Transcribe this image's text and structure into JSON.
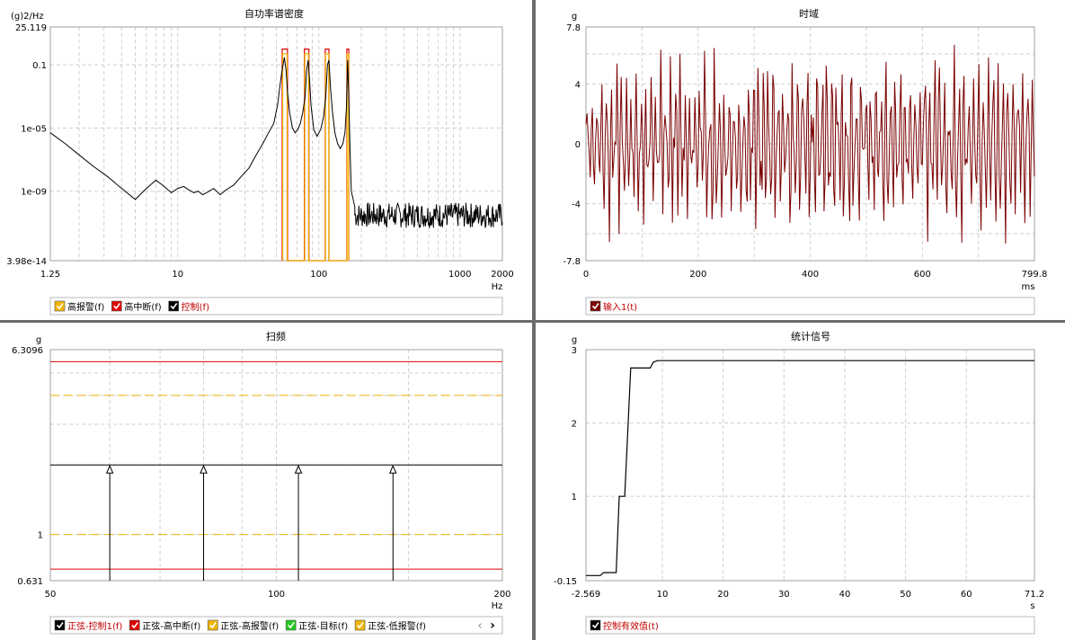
{
  "colors": {
    "control": "#000000",
    "abort": "#e00000",
    "alarm": "#f0b400",
    "target": "#22c922",
    "input": "#7a0000",
    "grid": "#cfcfcf"
  },
  "panels": {
    "psd": {
      "title": "自功率谱密度",
      "unit": "(g)2/Hz",
      "xunit": "Hz",
      "xticks": [
        "1.25",
        "10",
        "100",
        "1000",
        "2000"
      ],
      "yticks": [
        "25.119",
        "0.1",
        "1e-05",
        "1e-09",
        "3.98e-14"
      ],
      "legend": [
        {
          "label": "高报警(f)",
          "color": "#f0b400"
        },
        {
          "label": "高中断(f)",
          "color": "#e00000"
        },
        {
          "label": "控制(f)",
          "color": "#000000"
        }
      ]
    },
    "time": {
      "title": "时域",
      "unit": "g",
      "xunit": "ms",
      "xticks": [
        "0",
        "200",
        "400",
        "600",
        "799.8"
      ],
      "yticks": [
        "7.8",
        "4",
        "0",
        "-4",
        "-7.8"
      ],
      "legend": [
        {
          "label": "输入1(t)",
          "color": "#7a0000"
        }
      ]
    },
    "sweep": {
      "title": "扫频",
      "unit": "g",
      "xunit": "Hz",
      "xticks": [
        "50",
        "100",
        "200"
      ],
      "yticks": [
        "6.3096",
        "1",
        "0.631"
      ],
      "legend": [
        {
          "label": "正弦-控制1(f)",
          "color": "#000000"
        },
        {
          "label": "正弦-高中断(f)",
          "color": "#e00000"
        },
        {
          "label": "正弦-高报警(f)",
          "color": "#f0b400"
        },
        {
          "label": "正弦-目标(f)",
          "color": "#22c922"
        },
        {
          "label": "正弦-低报警(f)",
          "color": "#f0b400"
        }
      ],
      "nav_prev": "‹",
      "nav_next": "›"
    },
    "stat": {
      "title": "统计信号",
      "unit": "g",
      "xunit": "s",
      "xticks": [
        "-2.569",
        "10",
        "20",
        "30",
        "40",
        "50",
        "60",
        "71.2"
      ],
      "yticks": [
        "3",
        "2",
        "1",
        "-0.15"
      ],
      "legend": [
        {
          "label": "控制有效值(t)",
          "color": "#000000"
        }
      ]
    }
  },
  "chart_data": [
    {
      "type": "line",
      "title": "自功率谱密度",
      "xlabel": "Hz",
      "ylabel": "(g)2/Hz",
      "xscale": "log",
      "yscale": "log",
      "xlim": [
        1.25,
        2000
      ],
      "ylim": [
        3.98e-14,
        25.119
      ],
      "grid": true,
      "legend_position": "bottom",
      "series": [
        {
          "name": "控制(f)",
          "x": [
            1.25,
            1.6,
            2.0,
            2.5,
            3.2,
            4.0,
            5.0,
            6.0,
            7.0,
            8.0,
            9.0,
            10.0,
            11.0,
            12.0,
            13.0,
            14.0,
            15.0,
            16.0,
            18.0,
            20.0,
            22.0,
            25.0,
            28.0,
            32.0,
            36.0,
            40.0,
            44.0,
            48.0,
            51.0,
            53.0,
            55.0,
            57.0,
            58.5,
            60.0,
            62.0,
            65.0,
            68.0,
            71.0,
            74.0,
            77.0,
            80.0,
            82.0,
            84.0,
            86.0,
            88.0,
            92.0,
            97.0,
            103.0,
            108.0,
            112.0,
            115.0,
            118.0,
            121.0,
            125.0,
            130.0,
            136.0,
            142.0,
            148.0,
            153.0,
            157.0,
            160.0,
            163.0,
            166.0,
            170.0,
            180.0,
            200.0,
            240.0,
            300.0,
            400.0,
            500.0,
            700.0,
            1000.0,
            1500.0,
            2000.0
          ],
          "values": [
            5e-06,
            1e-06,
            2e-07,
            4e-08,
            8e-09,
            1.5e-09,
            3e-10,
            1.5e-09,
            5e-09,
            2e-09,
            8e-10,
            1.5e-09,
            2e-09,
            1.2e-09,
            8e-10,
            1e-09,
            6e-10,
            8e-10,
            1.5e-09,
            6e-10,
            1.2e-09,
            2.5e-09,
            8e-09,
            3e-08,
            2e-07,
            1e-06,
            5e-06,
            2e-05,
            0.0003,
            0.005,
            0.05,
            0.3,
            0.05,
            0.002,
            0.0001,
            1e-05,
            5e-06,
            8e-06,
            2e-05,
            0.0001,
            0.001,
            0.05,
            0.2,
            0.01,
            0.0003,
            8e-06,
            3e-06,
            8e-06,
            5e-05,
            0.001,
            0.1,
            0.2,
            0.003,
            0.0001,
            5e-06,
            1e-06,
            5e-07,
            1e-06,
            5e-06,
            0.0002,
            0.2,
            0.001,
            1e-06,
            1e-09,
            1e-10,
            5e-11,
            3e-11,
            4e-11,
            2e-11,
            3e-11,
            2e-11,
            3e-11,
            2e-11,
            3e-11
          ]
        },
        {
          "name": "高中断(f)",
          "x": [
            55,
            55,
            60,
            60,
            79,
            79,
            85,
            85,
            111,
            111,
            118,
            118,
            158,
            158,
            163,
            163
          ],
          "values": [
            3.98e-14,
            1.0,
            1.0,
            3.98e-14,
            3.98e-14,
            1.0,
            1.0,
            3.98e-14,
            3.98e-14,
            1.0,
            1.0,
            3.98e-14,
            3.98e-14,
            1.0,
            1.0,
            3.98e-14
          ]
        },
        {
          "name": "高报警(f)",
          "x": [
            55.5,
            55.5,
            59.5,
            59.5,
            79.5,
            79.5,
            84.5,
            84.5,
            111.5,
            111.5,
            117.5,
            117.5,
            158.5,
            158.5,
            162.5,
            162.5
          ],
          "values": [
            3.98e-14,
            0.5,
            0.5,
            3.98e-14,
            3.98e-14,
            0.5,
            0.5,
            3.98e-14,
            3.98e-14,
            0.5,
            0.5,
            3.98e-14,
            3.98e-14,
            0.5,
            0.5,
            3.98e-14
          ]
        }
      ]
    },
    {
      "type": "line",
      "title": "时域",
      "xlabel": "ms",
      "ylabel": "g",
      "xlim": [
        0,
        799.8
      ],
      "ylim": [
        -7.8,
        7.8
      ],
      "grid": true,
      "legend_position": "bottom",
      "series": [
        {
          "name": "输入1(t)",
          "x": [
            0,
            25,
            50,
            75,
            100,
            125,
            150,
            175,
            200,
            225,
            250,
            275,
            300,
            325,
            350,
            375,
            400,
            425,
            450,
            475,
            500,
            525,
            550,
            575,
            600,
            625,
            650,
            675,
            700,
            725,
            750,
            775,
            799.8
          ],
          "values": [
            -3.5,
            6.5,
            -6.8,
            5.2,
            -5.5,
            6.8,
            -6.2,
            4.8,
            -6.0,
            6.8,
            -5.0,
            6.2,
            -6.5,
            5.5,
            -6.8,
            6.5,
            -5.8,
            6.8,
            -6.0,
            5.8,
            -6.5,
            6.8,
            -6.2,
            5.0,
            -6.8,
            6.8,
            -6.5,
            5.5,
            -6.0,
            6.8,
            -6.5,
            6.0,
            -1.5
          ]
        }
      ]
    },
    {
      "type": "line",
      "title": "扫频",
      "xlabel": "Hz",
      "ylabel": "g",
      "xscale": "log",
      "yscale": "log",
      "xlim": [
        50,
        200
      ],
      "ylim": [
        0.631,
        6.3096
      ],
      "grid": true,
      "legend_position": "bottom",
      "series": [
        {
          "name": "正弦-控制1(f)",
          "x": [
            50,
            200
          ],
          "values": [
            2.0,
            2.0
          ]
        },
        {
          "name": "正弦-高中断(f)",
          "x": [
            50,
            200
          ],
          "values": [
            5.6,
            5.6
          ],
          "upper": [
            5.6,
            5.6
          ],
          "lower": [
            0.708,
            0.708
          ]
        },
        {
          "name": "正弦-高报警(f)",
          "x": [
            50,
            200
          ],
          "values": [
            4.0,
            4.0
          ]
        },
        {
          "name": "正弦-低报警(f)",
          "x": [
            50,
            200
          ],
          "values": [
            1.0,
            1.0
          ]
        }
      ],
      "markers": [
        {
          "x": 60,
          "value": 2.0
        },
        {
          "x": 80,
          "value": 2.0
        },
        {
          "x": 107,
          "value": 2.0
        },
        {
          "x": 143,
          "value": 2.0
        }
      ]
    },
    {
      "type": "line",
      "title": "统计信号",
      "xlabel": "s",
      "ylabel": "g",
      "xlim": [
        -2.569,
        71.2
      ],
      "ylim": [
        -0.15,
        3
      ],
      "grid": true,
      "legend_position": "bottom",
      "series": [
        {
          "name": "控制有效值(t)",
          "x": [
            -2.569,
            -0.2,
            0.3,
            2.4,
            2.9,
            3.8,
            4.2,
            4.8,
            5.5,
            8.0,
            8.5,
            9.2,
            71.2
          ],
          "values": [
            -0.08,
            -0.08,
            -0.04,
            -0.04,
            1.0,
            1.0,
            1.7,
            2.75,
            2.75,
            2.75,
            2.83,
            2.85,
            2.85
          ]
        }
      ]
    }
  ]
}
